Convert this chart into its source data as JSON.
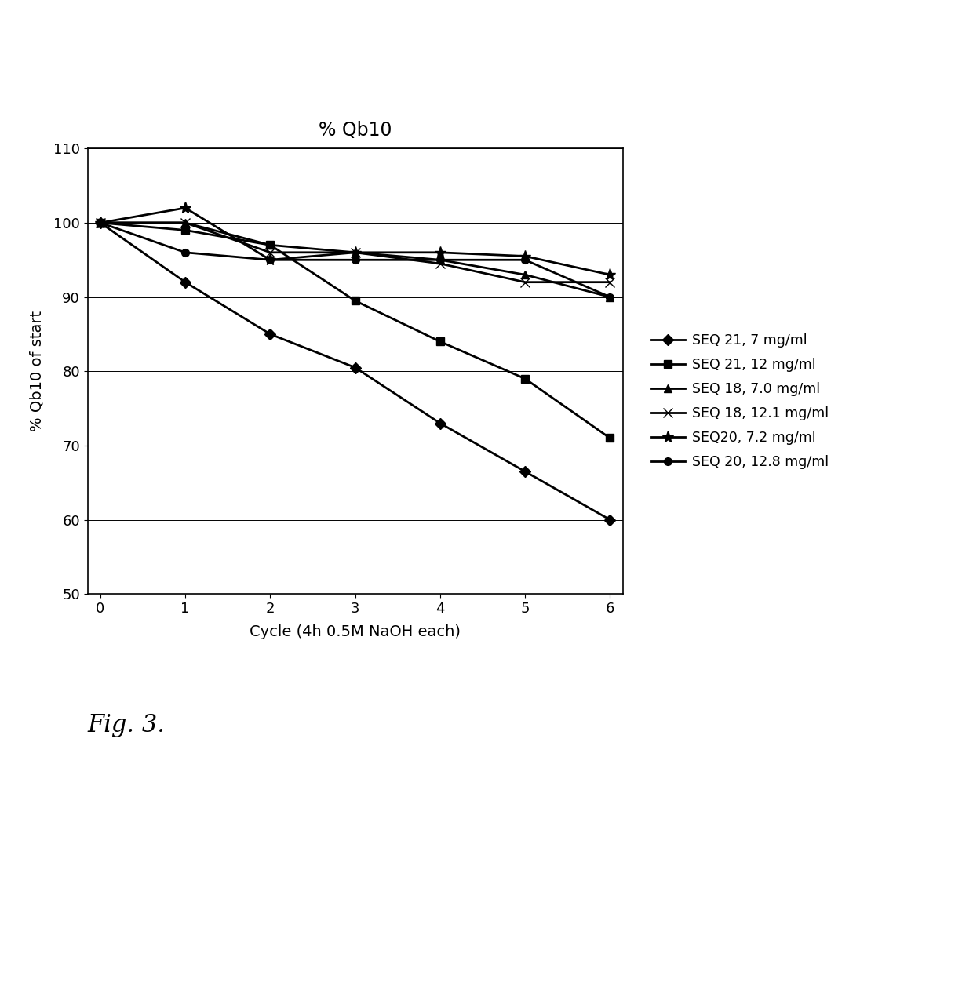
{
  "title": "% Qb10",
  "xlabel": "Cycle (4h 0.5M NaOH each)",
  "ylabel": "% Qb10 of start",
  "ylim": [
    50,
    110
  ],
  "yticks": [
    50,
    60,
    70,
    80,
    90,
    100,
    110
  ],
  "xlim": [
    -0.15,
    6.15
  ],
  "xticks": [
    0,
    1,
    2,
    3,
    4,
    5,
    6
  ],
  "series": [
    {
      "label": "SEQ 21, 7 mg/ml",
      "x": [
        0,
        1,
        2,
        3,
        4,
        5,
        6
      ],
      "y": [
        100,
        92,
        85,
        80.5,
        73,
        66.5,
        60
      ],
      "marker": "D",
      "markersize": 7,
      "linewidth": 2.0,
      "color": "#000000"
    },
    {
      "label": "SEQ 21, 12 mg/ml",
      "x": [
        0,
        1,
        2,
        3,
        4,
        5,
        6
      ],
      "y": [
        100,
        99,
        97,
        89.5,
        84,
        79,
        71
      ],
      "marker": "s",
      "markersize": 7,
      "linewidth": 2.0,
      "color": "#000000"
    },
    {
      "label": "SEQ 18, 7.0 mg/ml",
      "x": [
        0,
        1,
        2,
        3,
        4,
        5,
        6
      ],
      "y": [
        100,
        100,
        97,
        96,
        95,
        93,
        90
      ],
      "marker": "^",
      "markersize": 7,
      "linewidth": 2.0,
      "color": "#000000"
    },
    {
      "label": "SEQ 18, 12.1 mg/ml",
      "x": [
        0,
        1,
        2,
        3,
        4,
        5,
        6
      ],
      "y": [
        100,
        100,
        96,
        96,
        94.5,
        92,
        92
      ],
      "marker": "x",
      "markersize": 9,
      "linewidth": 2.0,
      "color": "#000000"
    },
    {
      "label": "SEQ20, 7.2 mg/ml",
      "x": [
        0,
        1,
        2,
        3,
        4,
        5,
        6
      ],
      "y": [
        100,
        102,
        95,
        96,
        96,
        95.5,
        93
      ],
      "marker": "*",
      "markersize": 11,
      "linewidth": 2.0,
      "color": "#000000"
    },
    {
      "label": "SEQ 20, 12.8 mg/ml",
      "x": [
        0,
        1,
        2,
        3,
        4,
        5,
        6
      ],
      "y": [
        100,
        96,
        95,
        95,
        95,
        95,
        90
      ],
      "marker": "o",
      "markersize": 7,
      "linewidth": 2.0,
      "color": "#000000"
    }
  ],
  "fig_caption": "Fig. 3.",
  "background_color": "#ffffff",
  "title_fontsize": 17,
  "label_fontsize": 14,
  "tick_fontsize": 13,
  "legend_fontsize": 12.5,
  "caption_fontsize": 22
}
